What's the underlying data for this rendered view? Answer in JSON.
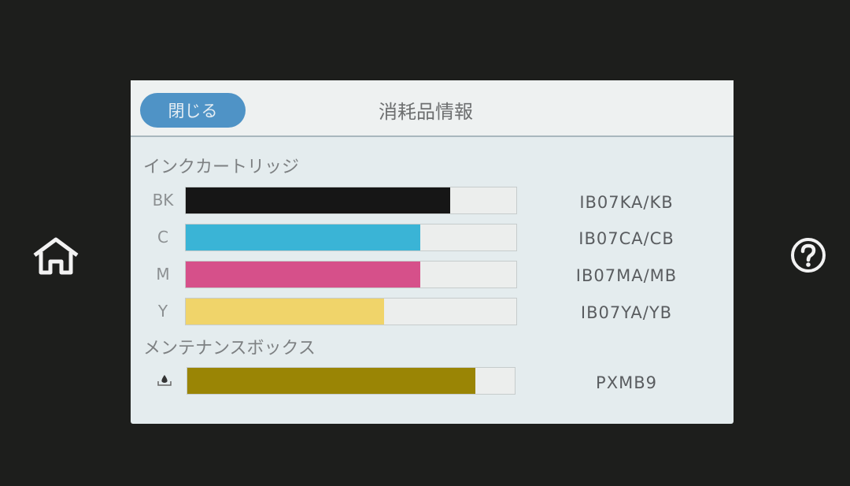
{
  "header": {
    "close_label": "閉じる",
    "title": "消耗品情報"
  },
  "ink_section": {
    "label": "インクカートリッジ"
  },
  "cartridges": [
    {
      "label": "BK",
      "code": "IB07KA/KB",
      "level_percent": 80,
      "color": "#161616"
    },
    {
      "label": "C",
      "code": "IB07CA/CB",
      "level_percent": 71,
      "color": "#3ab4d6"
    },
    {
      "label": "M",
      "code": "IB07MA/MB",
      "level_percent": 71,
      "color": "#d6508a"
    },
    {
      "label": "Y",
      "code": "IB07YA/YB",
      "level_percent": 60,
      "color": "#f0d46a"
    }
  ],
  "maintenance_section": {
    "label": "メンテナンスボックス"
  },
  "maintenance_box": {
    "icon": "ink-drop-tray-icon",
    "code": "PXMB9",
    "level_percent": 88,
    "color": "#9a8505"
  },
  "side": {
    "home_icon": "home-icon",
    "help_icon": "help-icon"
  }
}
